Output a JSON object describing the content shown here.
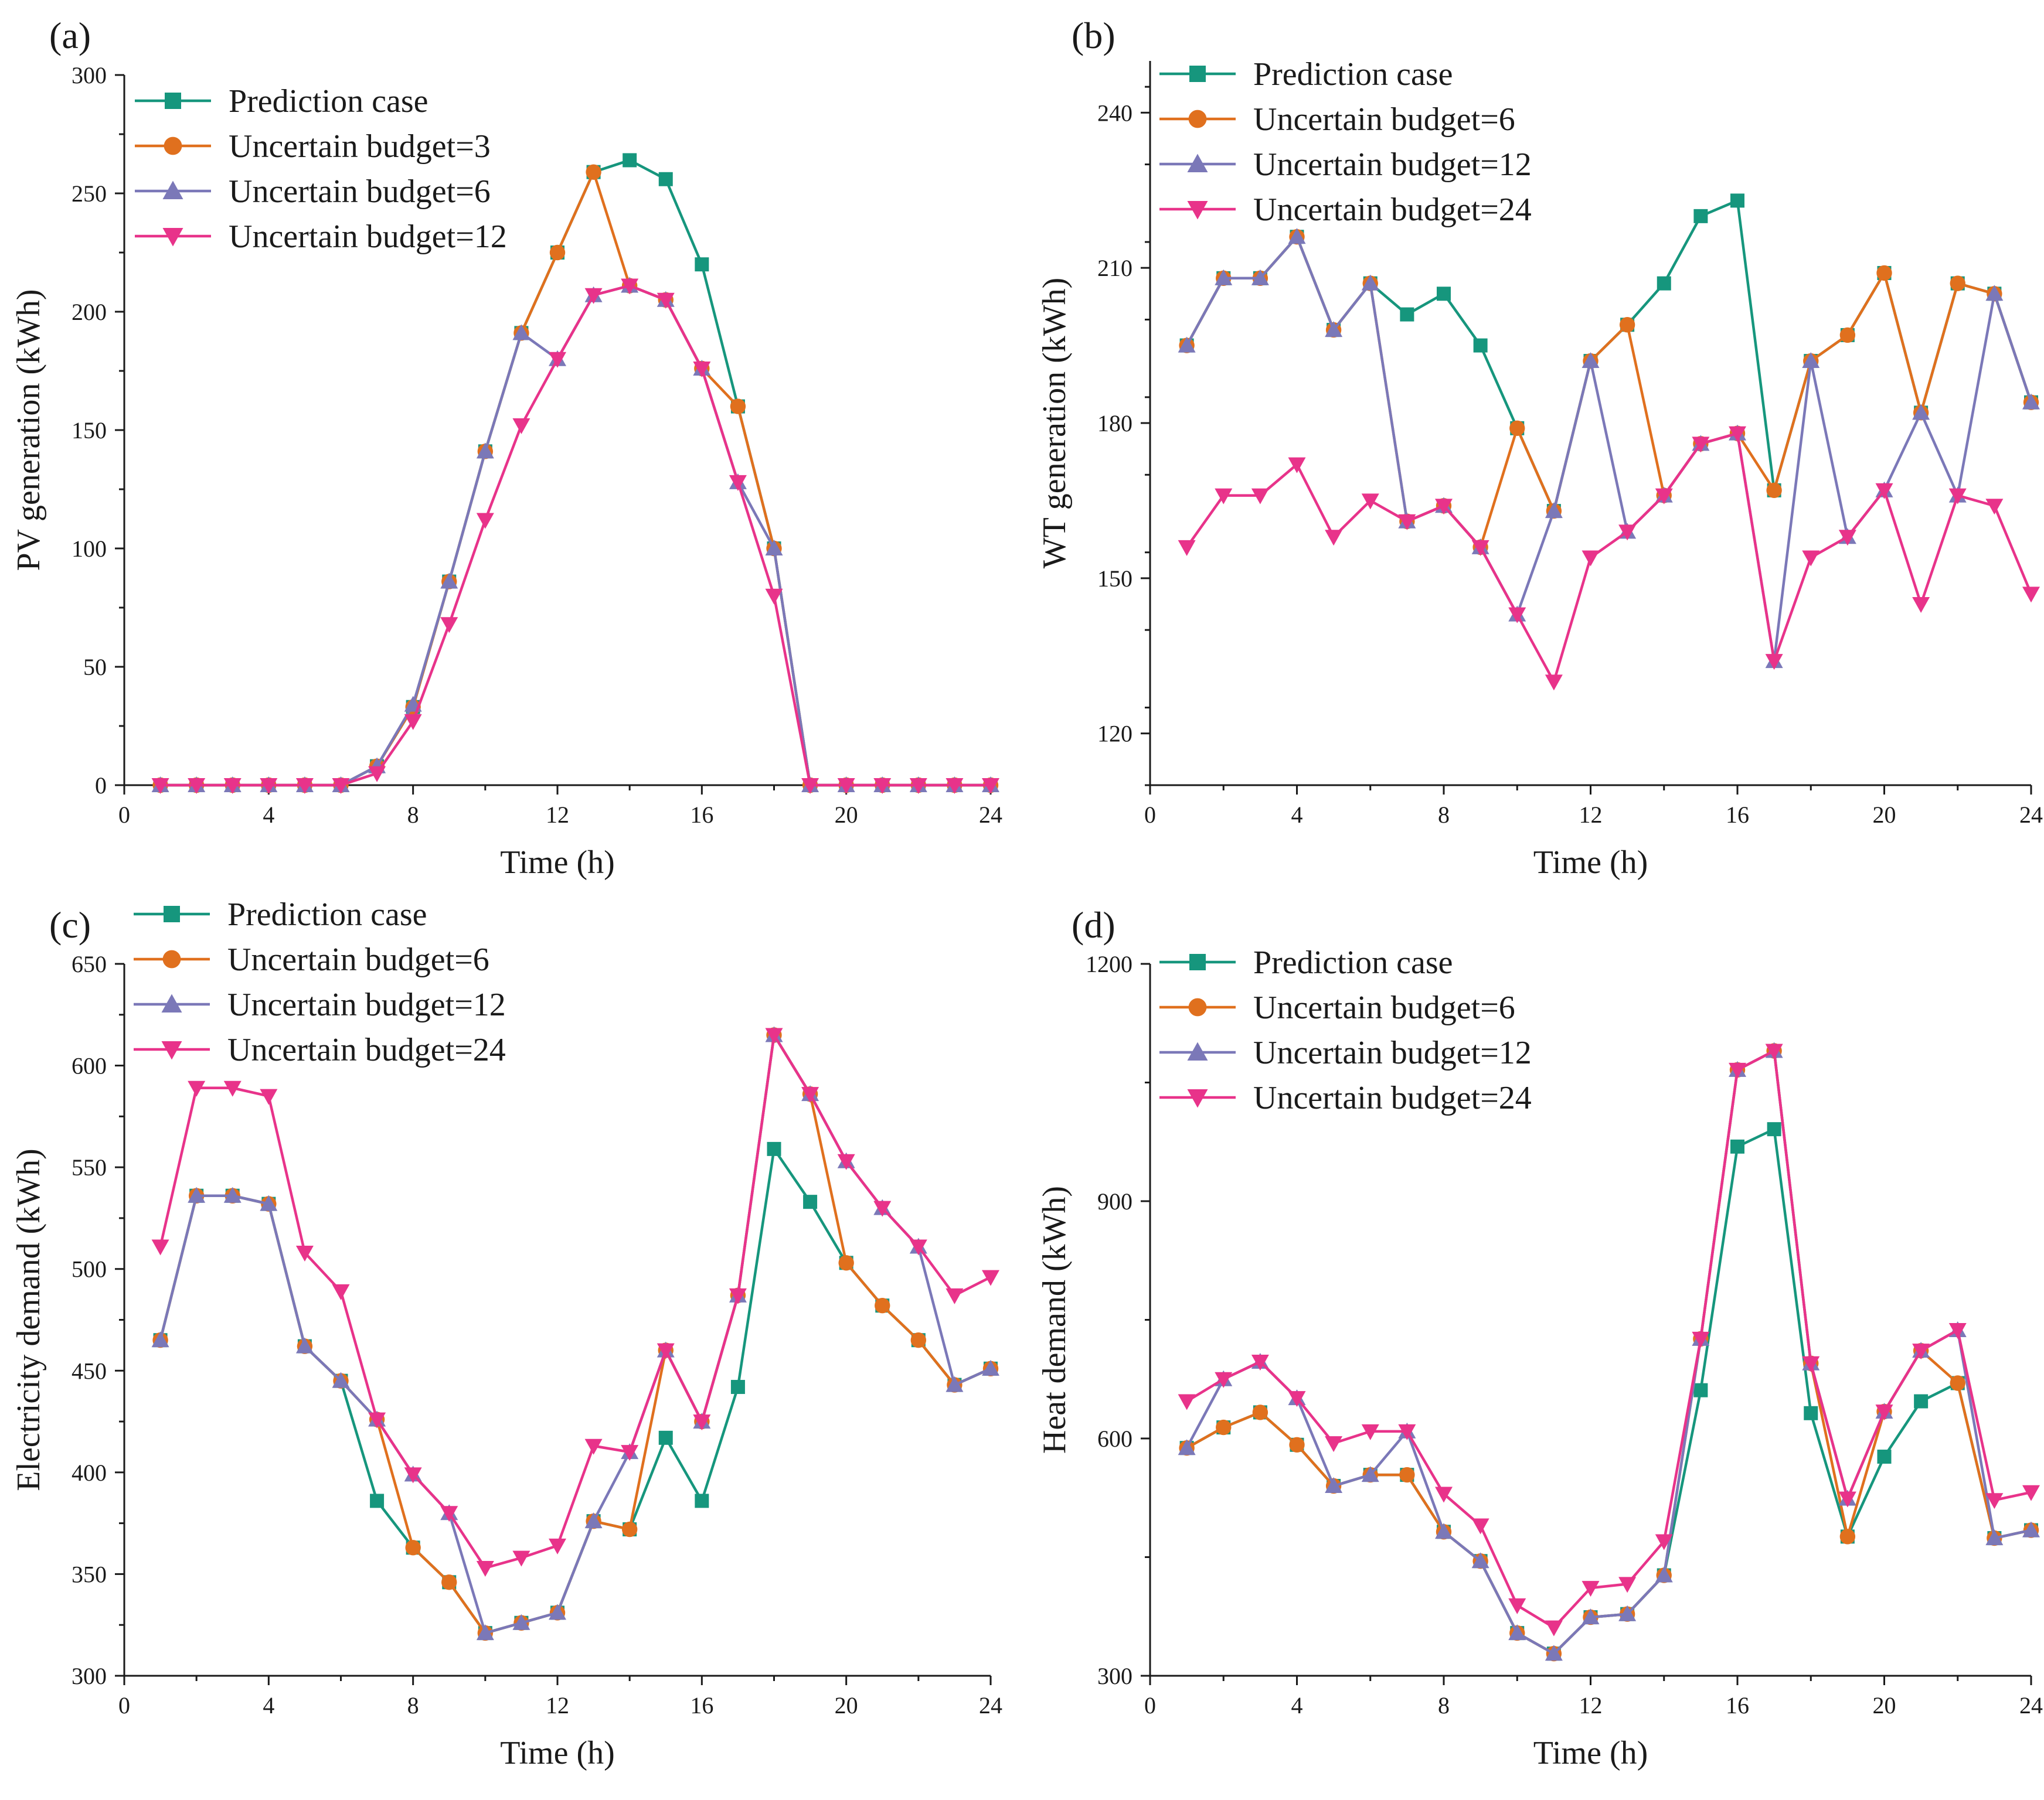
{
  "figure": {
    "type": "multi-panel line chart"
  },
  "chart_data": [
    {
      "type": "line",
      "panel_label": "(a)",
      "xlabel": "Time (h)",
      "ylabel": "PV generation (kWh)",
      "xlim": [
        0,
        24
      ],
      "ylim": [
        0,
        300
      ],
      "xticks": [
        0,
        4,
        8,
        12,
        16,
        20,
        24
      ],
      "yticks": [
        0,
        50,
        100,
        150,
        200,
        250,
        300
      ],
      "legend_position": "top-left",
      "x": [
        1,
        2,
        3,
        4,
        5,
        6,
        7,
        8,
        9,
        10,
        11,
        12,
        13,
        14,
        15,
        16,
        17,
        18,
        19,
        20,
        21,
        22,
        23,
        24
      ],
      "series": [
        {
          "name": "Prediction case",
          "color": "#16967d",
          "marker": "square",
          "values": [
            0,
            0,
            0,
            0,
            0,
            0,
            8,
            33,
            86,
            141,
            191,
            225,
            259,
            264,
            256,
            220,
            160,
            100,
            0,
            0,
            0,
            0,
            0,
            0
          ]
        },
        {
          "name": "Uncertain budget=3",
          "color": "#e0701e",
          "marker": "circle",
          "values": [
            0,
            0,
            0,
            0,
            0,
            0,
            8,
            33,
            86,
            141,
            191,
            225,
            259,
            211,
            205,
            176,
            160,
            100,
            0,
            0,
            0,
            0,
            0,
            0
          ]
        },
        {
          "name": "Uncertain budget=6",
          "color": "#7b78b8",
          "marker": "triangle-up",
          "values": [
            0,
            0,
            0,
            0,
            0,
            0,
            8,
            34,
            86,
            141,
            191,
            180,
            207,
            211,
            205,
            176,
            128,
            100,
            0,
            0,
            0,
            0,
            0,
            0
          ]
        },
        {
          "name": "Uncertain budget=12",
          "color": "#e8338a",
          "marker": "triangle-down",
          "values": [
            0,
            0,
            0,
            0,
            0,
            0,
            5,
            27,
            68,
            112,
            152,
            180,
            207,
            211,
            205,
            176,
            128,
            80,
            0,
            0,
            0,
            0,
            0,
            0
          ]
        }
      ]
    },
    {
      "type": "line",
      "panel_label": "(b)",
      "xlabel": "Time (h)",
      "ylabel": "WT generation (kWh)",
      "xlim": [
        0,
        24
      ],
      "ylim": [
        110,
        250
      ],
      "xticks": [
        0,
        4,
        8,
        12,
        16,
        20,
        24
      ],
      "yticks": [
        120,
        150,
        180,
        210,
        240
      ],
      "legend_position": "top-left",
      "x": [
        1,
        2,
        3,
        4,
        5,
        6,
        7,
        8,
        9,
        10,
        11,
        12,
        13,
        14,
        15,
        16,
        17,
        18,
        19,
        20,
        21,
        22,
        23,
        24
      ],
      "series": [
        {
          "name": "Prediction case",
          "color": "#16967d",
          "marker": "square",
          "values": [
            195,
            208,
            208,
            216,
            198,
            207,
            201,
            205,
            195,
            179,
            163,
            192,
            199,
            207,
            220,
            223,
            167,
            192,
            197,
            209,
            182,
            207,
            205,
            184
          ]
        },
        {
          "name": "Uncertain budget=6",
          "color": "#e0701e",
          "marker": "circle",
          "values": [
            195,
            208,
            208,
            216,
            198,
            207,
            161,
            164,
            156,
            179,
            163,
            192,
            199,
            166,
            176,
            178,
            167,
            192,
            197,
            209,
            182,
            207,
            205,
            184
          ]
        },
        {
          "name": "Uncertain budget=12",
          "color": "#7b78b8",
          "marker": "triangle-up",
          "values": [
            195,
            208,
            208,
            216,
            198,
            207,
            161,
            164,
            156,
            143,
            163,
            192,
            159,
            166,
            176,
            178,
            134,
            192,
            158,
            167,
            182,
            166,
            205,
            184
          ]
        },
        {
          "name": "Uncertain budget=24",
          "color": "#e8338a",
          "marker": "triangle-down",
          "values": [
            156,
            166,
            166,
            172,
            158,
            165,
            161,
            164,
            156,
            143,
            130,
            154,
            159,
            166,
            176,
            178,
            134,
            154,
            158,
            167,
            145,
            166,
            164,
            147
          ]
        }
      ]
    },
    {
      "type": "line",
      "panel_label": "(c)",
      "xlabel": "Time (h)",
      "ylabel": "Electricity demand (kWh)",
      "xlim": [
        0,
        24
      ],
      "ylim": [
        300,
        650
      ],
      "xticks": [
        0,
        4,
        8,
        12,
        16,
        20,
        24
      ],
      "yticks": [
        300,
        350,
        400,
        450,
        500,
        550,
        600,
        650
      ],
      "legend_position": "top-left",
      "x": [
        1,
        2,
        3,
        4,
        5,
        6,
        7,
        8,
        9,
        10,
        11,
        12,
        13,
        14,
        15,
        16,
        17,
        18,
        19,
        20,
        21,
        22,
        23,
        24
      ],
      "series": [
        {
          "name": "Prediction case",
          "color": "#16967d",
          "marker": "square",
          "values": [
            465,
            536,
            536,
            532,
            462,
            445,
            386,
            363,
            346,
            321,
            326,
            331,
            376,
            372,
            417,
            386,
            442,
            559,
            533,
            503,
            482,
            465,
            443,
            451
          ]
        },
        {
          "name": "Uncertain budget=6",
          "color": "#e0701e",
          "marker": "circle",
          "values": [
            465,
            536,
            536,
            532,
            462,
            445,
            426,
            363,
            346,
            321,
            326,
            331,
            376,
            372,
            460,
            425,
            487,
            615,
            586,
            503,
            482,
            465,
            443,
            451
          ]
        },
        {
          "name": "Uncertain budget=12",
          "color": "#7b78b8",
          "marker": "triangle-up",
          "values": [
            465,
            536,
            536,
            532,
            462,
            445,
            426,
            399,
            380,
            321,
            326,
            331,
            376,
            410,
            460,
            425,
            487,
            615,
            586,
            553,
            530,
            511,
            443,
            451
          ]
        },
        {
          "name": "Uncertain budget=24",
          "color": "#e8338a",
          "marker": "triangle-down",
          "values": [
            511,
            589,
            589,
            585,
            508,
            489,
            426,
            399,
            380,
            353,
            358,
            364,
            413,
            410,
            460,
            425,
            487,
            615,
            586,
            553,
            530,
            511,
            487,
            496
          ]
        }
      ]
    },
    {
      "type": "line",
      "panel_label": "(d)",
      "xlabel": "Time (h)",
      "ylabel": "Heat demand (kWh)",
      "xlim": [
        0,
        24
      ],
      "ylim": [
        300,
        1200
      ],
      "xticks": [
        0,
        4,
        8,
        12,
        16,
        20,
        24
      ],
      "yticks": [
        300,
        600,
        900,
        1200
      ],
      "legend_position": "top-left",
      "x": [
        1,
        2,
        3,
        4,
        5,
        6,
        7,
        8,
        9,
        10,
        11,
        12,
        13,
        14,
        15,
        16,
        17,
        18,
        19,
        20,
        21,
        22,
        23,
        24
      ],
      "series": [
        {
          "name": "Prediction case",
          "color": "#16967d",
          "marker": "square",
          "values": [
            588,
            614,
            633,
            592,
            540,
            554,
            554,
            482,
            445,
            354,
            328,
            374,
            378,
            427,
            661,
            969,
            991,
            632,
            476,
            577,
            647,
            670,
            474,
            484
          ]
        },
        {
          "name": "Uncertain budget=6",
          "color": "#e0701e",
          "marker": "circle",
          "values": [
            588,
            614,
            633,
            592,
            540,
            554,
            554,
            482,
            445,
            354,
            328,
            374,
            378,
            427,
            726,
            1066,
            1090,
            695,
            476,
            634,
            711,
            670,
            474,
            484
          ]
        },
        {
          "name": "Uncertain budget=12",
          "color": "#7b78b8",
          "marker": "triangle-up",
          "values": [
            588,
            675,
            697,
            651,
            540,
            554,
            609,
            482,
            445,
            354,
            328,
            374,
            378,
            427,
            726,
            1066,
            1090,
            695,
            524,
            634,
            711,
            737,
            474,
            484
          ]
        },
        {
          "name": "Uncertain budget=24",
          "color": "#e8338a",
          "marker": "triangle-down",
          "values": [
            647,
            675,
            697,
            651,
            594,
            609,
            609,
            530,
            490,
            389,
            361,
            411,
            416,
            470,
            726,
            1066,
            1090,
            695,
            524,
            634,
            711,
            737,
            522,
            532
          ]
        }
      ]
    }
  ]
}
